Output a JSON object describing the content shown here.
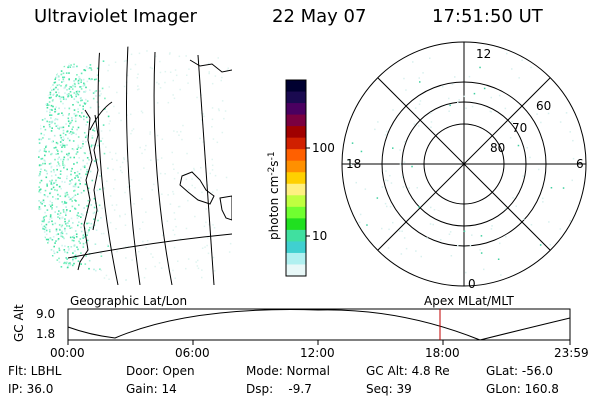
{
  "header": {
    "instrument": "Ultraviolet Imager",
    "date": "22 May 07",
    "time": "17:51:50 UT"
  },
  "colorbar": {
    "label": "photon cm",
    "label_sup1": "-2",
    "label_mid": "s",
    "label_sup2": "-1",
    "ticks": [
      "100",
      "10"
    ],
    "colors": [
      "#000030",
      "#1a0a50",
      "#4a0060",
      "#7a0040",
      "#a00000",
      "#d02000",
      "#ff6000",
      "#ff9000",
      "#ffd000",
      "#fff080",
      "#c0ff40",
      "#70ff30",
      "#20e020",
      "#40e0a0",
      "#40d0d0",
      "#b0f0f0",
      "#e8f8f8"
    ]
  },
  "geographic_panel": {
    "caption": "Geographic Lat/Lon"
  },
  "polar_panel": {
    "caption": "Apex MLat/MLT",
    "mlt_labels": {
      "top": "12",
      "left": "18",
      "right": "6",
      "bottom": "0"
    },
    "lat_labels": [
      "60",
      "70",
      "80"
    ]
  },
  "orbit_plot": {
    "ylabel": "GC Alt",
    "y_ticks": [
      "9.0",
      "1.8"
    ],
    "x_ticks": [
      "00:00",
      "06:00",
      "12:00",
      "18:00",
      "23:59"
    ],
    "marker_color": "#c00000"
  },
  "params": {
    "flt": "Flt: LBHL",
    "door": "Door: Open",
    "mode": "Mode: Normal",
    "gc_alt": "GC Alt: 4.8 Re",
    "glat": "GLat: -56.0",
    "ip": "IP: 36.0",
    "gain": "Gain: 14",
    "dsp": "Dsp:    -9.7",
    "seq": "Seq: 39",
    "glon": "GLon: 160.8"
  }
}
